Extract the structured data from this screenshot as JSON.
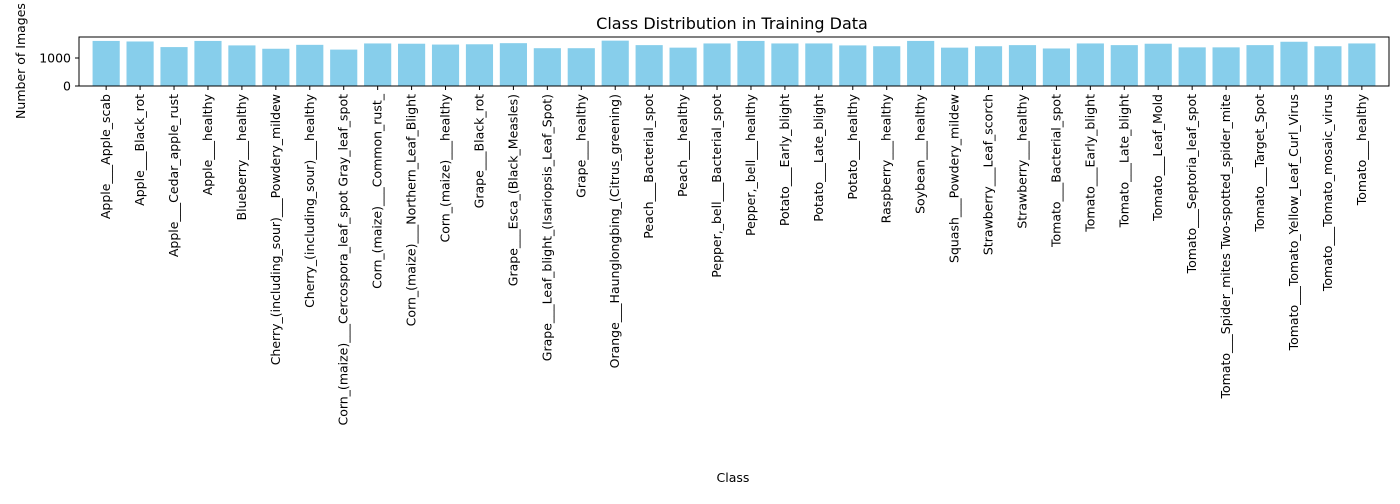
{
  "colors": {
    "bar": "#87CEEB",
    "axis": "#000000",
    "background": "#ffffff"
  },
  "chart_data": {
    "type": "bar",
    "title": "Class Distribution in Training Data",
    "xlabel": "Class",
    "ylabel": "Number of Images",
    "ylim": [
      0,
      1750
    ],
    "yticks": [
      0,
      1000
    ],
    "grid": false,
    "categories": [
      "Apple___Apple_scab",
      "Apple___Black_rot",
      "Apple___Cedar_apple_rust",
      "Apple___healthy",
      "Blueberry___healthy",
      "Cherry_(including_sour)___Powdery_mildew",
      "Cherry_(including_sour)___healthy",
      "Corn_(maize)___Cercospora_leaf_spot Gray_leaf_spot",
      "Corn_(maize)___Common_rust_",
      "Corn_(maize)___Northern_Leaf_Blight",
      "Corn_(maize)___healthy",
      "Grape___Black_rot",
      "Grape___Esca_(Black_Measles)",
      "Grape___Leaf_blight_(Isariopsis_Leaf_Spot)",
      "Grape___healthy",
      "Orange___Haunglongbing_(Citrus_greening)",
      "Peach___Bacterial_spot",
      "Peach___healthy",
      "Pepper,_bell___Bacterial_spot",
      "Pepper,_bell___healthy",
      "Potato___Early_blight",
      "Potato___Late_blight",
      "Potato___healthy",
      "Raspberry___healthy",
      "Soybean___healthy",
      "Squash___Powdery_mildew",
      "Strawberry___Leaf_scorch",
      "Strawberry___healthy",
      "Tomato___Bacterial_spot",
      "Tomato___Early_blight",
      "Tomato___Late_blight",
      "Tomato___Leaf_Mold",
      "Tomato___Septoria_leaf_spot",
      "Tomato___Spider_mites Two-spotted_spider_mite",
      "Tomato___Target_Spot",
      "Tomato___Tomato_Yellow_Leaf_Curl_Virus",
      "Tomato___Tomato_mosaic_virus",
      "Tomato___healthy"
    ],
    "values": [
      1610,
      1590,
      1390,
      1610,
      1450,
      1330,
      1470,
      1300,
      1520,
      1510,
      1480,
      1490,
      1530,
      1350,
      1350,
      1620,
      1460,
      1370,
      1520,
      1610,
      1520,
      1520,
      1450,
      1420,
      1610,
      1370,
      1420,
      1460,
      1340,
      1520,
      1460,
      1510,
      1380,
      1380,
      1460,
      1580,
      1420,
      1520
    ]
  }
}
